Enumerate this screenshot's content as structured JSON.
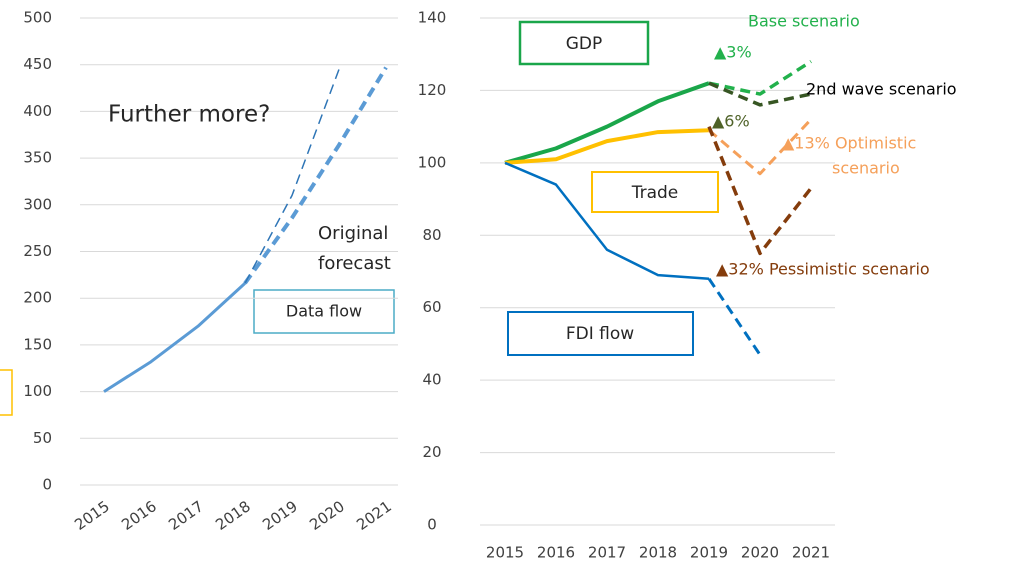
{
  "chart_data": [
    {
      "type": "line",
      "categories": [
        "2015",
        "2016",
        "2017",
        "2018",
        "2019",
        "2020",
        "2021"
      ],
      "ylim": [
        0,
        500
      ],
      "yticks": [
        0,
        50,
        100,
        150,
        200,
        250,
        300,
        350,
        400,
        450,
        500
      ],
      "grid": true,
      "series": [
        {
          "color": "#5b9bd5",
          "width": 3,
          "style": "solid",
          "values": [
            100,
            132,
            170,
            216,
            null,
            null,
            null
          ]
        },
        {
          "color": "#5b9bd5",
          "width": 4,
          "style": "dashed",
          "values": [
            null,
            null,
            null,
            216,
            286,
            364,
            447
          ]
        },
        {
          "color": "#2e75b6",
          "width": 1.5,
          "style": "dashed",
          "values": [
            null,
            null,
            null,
            216,
            310,
            445,
            null
          ]
        }
      ],
      "annotations": [
        "Further more?",
        "Original",
        "forecast",
        "Data flow"
      ]
    },
    {
      "type": "line",
      "categories": [
        "2015",
        "2016",
        "2017",
        "2018",
        "2019",
        "2020",
        "2021"
      ],
      "ylim": [
        0,
        140
      ],
      "yticks": [
        0,
        20,
        40,
        60,
        80,
        100,
        120,
        140
      ],
      "grid": true,
      "series": [
        {
          "color": "#1aa64a",
          "width": 4,
          "style": "solid",
          "values": [
            100,
            104,
            110,
            117,
            122,
            null,
            null
          ]
        },
        {
          "color": "#22b14c",
          "width": 3.5,
          "style": "dashed",
          "values": [
            null,
            null,
            null,
            null,
            122,
            119,
            128
          ]
        },
        {
          "color": "#375623",
          "width": 3.5,
          "style": "dashed",
          "values": [
            null,
            null,
            null,
            null,
            122,
            116,
            119
          ]
        },
        {
          "color": "#ffc000",
          "width": 4,
          "style": "solid",
          "values": [
            100,
            101,
            106,
            108.5,
            109,
            null,
            null
          ]
        },
        {
          "color": "#f5a05a",
          "width": 3,
          "style": "dashed",
          "values": [
            null,
            null,
            null,
            null,
            109,
            97,
            112
          ]
        },
        {
          "color": "#843c0c",
          "width": 3.5,
          "style": "dashed",
          "values": [
            null,
            null,
            null,
            null,
            110,
            75,
            93
          ]
        },
        {
          "color": "#0070c0",
          "width": 2.5,
          "style": "solid",
          "values": [
            100,
            94,
            76,
            69,
            68,
            null,
            null
          ]
        },
        {
          "color": "#0070c0",
          "width": 3,
          "style": "dashed",
          "values": [
            null,
            null,
            null,
            null,
            68,
            47,
            null
          ]
        }
      ],
      "annotations": [
        "GDP",
        "Trade",
        "FDI flow",
        "Base scenario",
        "▲3%",
        "2nd wave scenario",
        "▲6%",
        "▲13%  Optimistic",
        "scenario",
        "▲32%  Pessimistic scenario"
      ]
    }
  ]
}
